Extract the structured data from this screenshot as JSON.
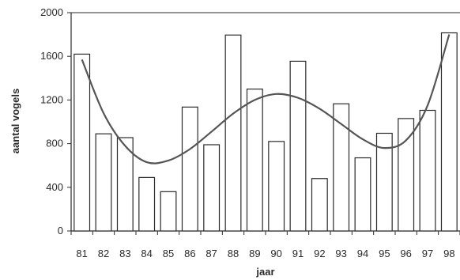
{
  "chart_data": {
    "type": "bar",
    "title": "",
    "xlabel": "jaar",
    "ylabel": "aantal vogels",
    "ylim": [
      0,
      2000
    ],
    "yticks": [
      0,
      400,
      800,
      1200,
      1600,
      2000
    ],
    "categories": [
      "81",
      "82",
      "83",
      "84",
      "85",
      "86",
      "87",
      "88",
      "89",
      "90",
      "91",
      "92",
      "93",
      "94",
      "95",
      "96",
      "97",
      "98"
    ],
    "values": [
      1620,
      890,
      855,
      490,
      360,
      1135,
      790,
      1795,
      1300,
      820,
      1555,
      480,
      1165,
      670,
      895,
      1030,
      1105,
      1815
    ],
    "trend": {
      "type": "line",
      "values": [
        1570,
        1080,
        780,
        630,
        645,
        750,
        910,
        1075,
        1200,
        1255,
        1220,
        1120,
        980,
        840,
        760,
        830,
        1150,
        1800
      ]
    },
    "grid": false,
    "legend": "none",
    "colors": {
      "bar_fill": "#ffffff",
      "bar_stroke": "#2a2a2a",
      "line": "#555555",
      "axis": "#2a2a2a"
    }
  }
}
